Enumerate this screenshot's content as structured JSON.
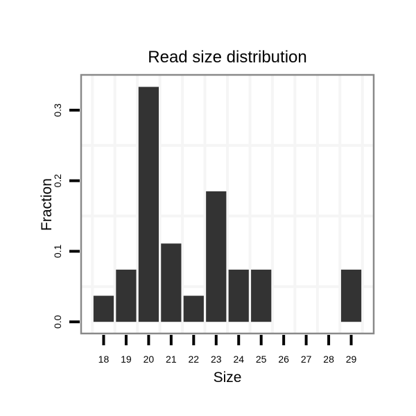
{
  "chart_data": {
    "type": "bar",
    "title": "Read size distribution",
    "xlabel": "Size",
    "ylabel": "Fraction",
    "categories": [
      18,
      19,
      20,
      21,
      22,
      23,
      24,
      25,
      26,
      27,
      28,
      29
    ],
    "values": [
      0.037,
      0.074,
      0.333,
      0.111,
      0.037,
      0.185,
      0.074,
      0.074,
      0,
      0,
      0,
      0.074
    ],
    "xlim": [
      17,
      30
    ],
    "ylim": [
      -0.0165,
      0.35
    ],
    "yticks": [
      0,
      0.1,
      0.2,
      0.3
    ],
    "ytick_labels": [
      "0.0",
      "0.1",
      "0.2",
      "0.3"
    ],
    "bar_width": 0.9,
    "grid": "minor gridlines only, at half-unit positions",
    "legend": "none",
    "colors": {
      "bar": "#333333",
      "panel_border": "#898989",
      "grid_minor": "#f5f5f5",
      "tick": "#000000",
      "text": "#000000",
      "background": "#ffffff"
    }
  }
}
